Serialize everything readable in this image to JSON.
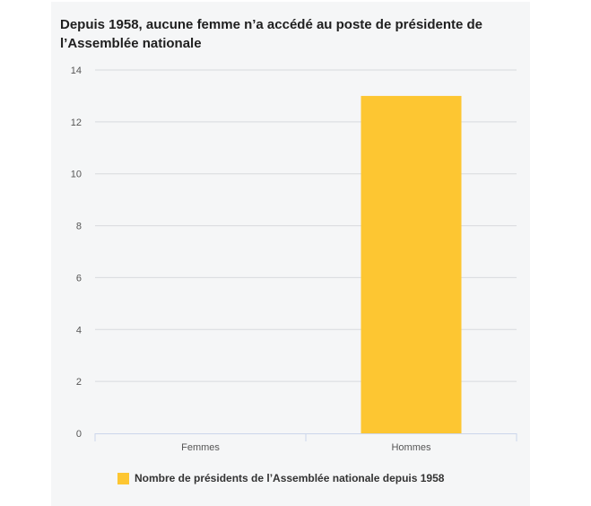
{
  "chart_data": {
    "type": "bar",
    "title": "Depuis 1958, aucune femme n’a accédé au poste de présidente de l’Assemblée nationale",
    "xlabel": "",
    "ylabel": "",
    "categories": [
      "Femmes",
      "Hommes"
    ],
    "series": [
      {
        "name": "Nombre de présidents de l’Assemblée nationale depuis 1958",
        "values": [
          0,
          13
        ],
        "color": "#fdc632"
      }
    ],
    "ylim": [
      0,
      14
    ],
    "yticks": [
      "0",
      "2",
      "4",
      "6",
      "8",
      "10",
      "12",
      "14"
    ],
    "grid": true,
    "legend_position": "bottom"
  },
  "colors": {
    "background": "#f5f6f7",
    "gridline": "#d8dade",
    "axis": "#ccd6eb",
    "bar": "#fdc632"
  }
}
